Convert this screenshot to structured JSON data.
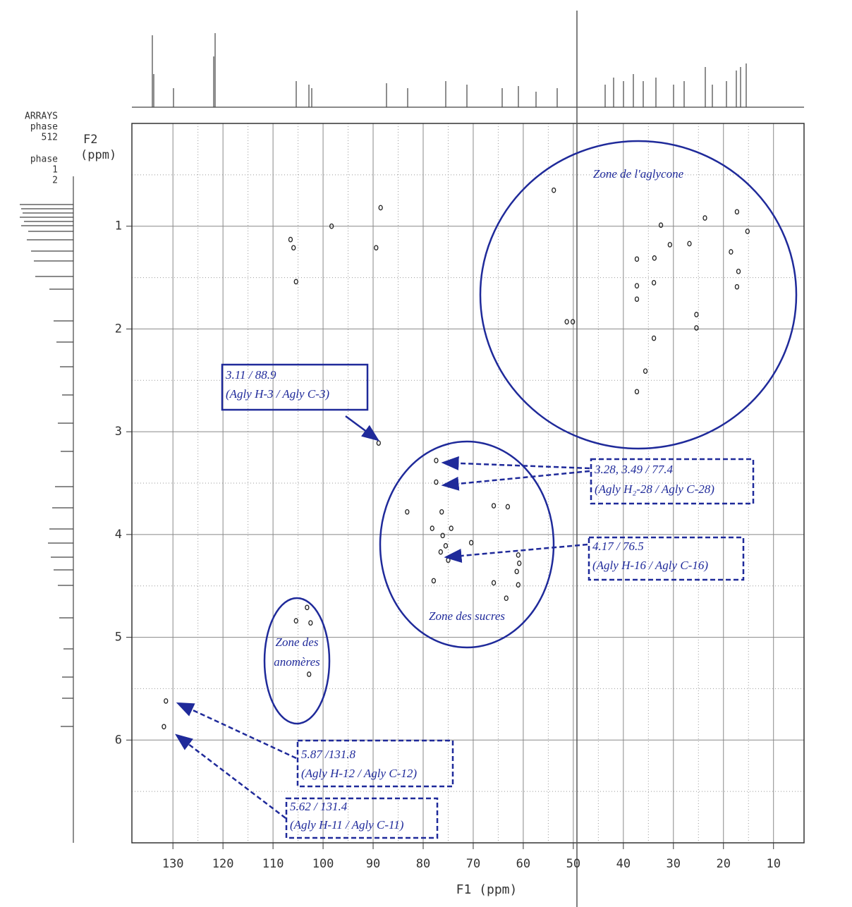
{
  "chart_data": {
    "type": "scatter",
    "header_text": [
      "ARRAYS",
      "phase",
      "512",
      "phase",
      "1",
      "2"
    ],
    "x_label": "F1 (ppm)",
    "y_label": [
      "F2",
      "(ppm)"
    ],
    "xlim": [
      138.2,
      3.9
    ],
    "xticks": [
      130,
      120,
      110,
      100,
      90,
      80,
      70,
      60,
      50,
      40,
      30,
      20,
      10
    ],
    "ylim": [
      0,
      7
    ],
    "yticks": [
      1,
      2,
      3,
      4,
      5,
      6
    ],
    "grid": true,
    "color": "#222222",
    "series": [
      {
        "x": [
          53.9,
          23.7,
          17.3,
          15.2,
          32.5,
          26.8,
          30.7,
          37.3,
          33.8,
          18.5,
          37.3,
          33.9,
          17.3,
          17.0,
          37.3,
          25.4,
          25.4,
          51.3,
          50.1,
          33.9,
          35.6,
          37.3,
          88.9,
          77.4,
          77.4,
          83.2,
          76.3,
          65.9,
          63.1,
          78.2,
          76.1,
          74.4,
          70.4,
          75.5,
          76.5,
          77.9,
          65.9,
          61.0,
          60.8,
          61.3,
          61.0,
          63.4,
          75.0,
          103.2,
          105.4,
          102.5,
          102.8,
          131.4,
          131.8,
          106.5,
          105.9,
          89.4,
          88.5,
          98.3,
          105.4
        ],
        "values": [
          0.65,
          0.92,
          0.86,
          1.05,
          0.99,
          1.17,
          1.18,
          1.32,
          1.31,
          1.25,
          1.58,
          1.55,
          1.59,
          1.44,
          1.71,
          1.86,
          1.99,
          1.93,
          1.93,
          2.09,
          2.41,
          2.61,
          3.11,
          3.28,
          3.49,
          3.78,
          3.78,
          3.72,
          3.73,
          3.94,
          4.01,
          3.94,
          4.08,
          4.11,
          4.17,
          4.45,
          4.47,
          4.2,
          4.28,
          4.36,
          4.49,
          4.62,
          4.25,
          4.71,
          4.84,
          4.86,
          5.36,
          5.62,
          5.87,
          1.13,
          1.21,
          1.21,
          0.82,
          1.0,
          1.54
        ]
      }
    ],
    "annotations": [
      {
        "text": "3.11 / 88.9",
        "subtext": "(Agly H-3 / Agly C-3)"
      },
      {
        "text": "3.28, 3.49 / 77.4",
        "subtext": "(Agly H₂-28 / Agly C-28)"
      },
      {
        "text": "4.17 / 76.5",
        "subtext": "(Agly H-16 / Agly C-16)"
      },
      {
        "text": "5.87 /131.8",
        "subtext": "(Agly H-12 / Agly C-12)"
      },
      {
        "text": "5.62 / 131.4",
        "subtext": "(Agly H-11 / Agly C-11)"
      }
    ],
    "zones": [
      [
        "Zone de l'aglycone"
      ],
      [
        "Zone des sucres"
      ],
      [
        "Zone des",
        "anomères"
      ]
    ]
  }
}
